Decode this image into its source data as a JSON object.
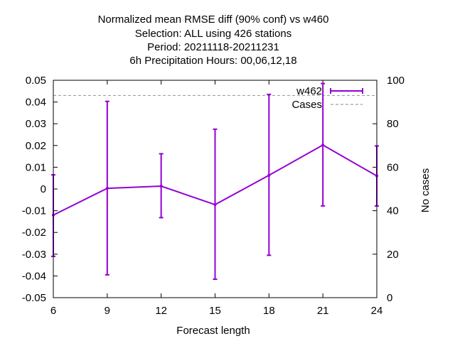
{
  "chart_data": {
    "type": "line",
    "title_lines": [
      "Normalized mean RMSE diff (90% conf) vs w460",
      "Selection: ALL using   426 stations",
      "Period: 20211118-20211231",
      "6h Precipitation    Hours:  00,06,12,18"
    ],
    "xlabel": "Forecast length",
    "ylabel": "",
    "y2label": "No cases",
    "x": [
      6,
      9,
      12,
      15,
      18,
      21,
      24
    ],
    "xlim": [
      6,
      24
    ],
    "ylim": [
      -0.05,
      0.05
    ],
    "y2lim": [
      0,
      100
    ],
    "x_ticks": [
      "6",
      "9",
      "12",
      "15",
      "18",
      "21",
      "24"
    ],
    "y_ticks": [
      "0.05",
      "0.04",
      "0.03",
      "0.02",
      "0.01",
      "0",
      "-0.01",
      "-0.02",
      "-0.03",
      "-0.04",
      "-0.05"
    ],
    "y2_ticks": [
      "100",
      "80",
      "60",
      "40",
      "20",
      "0"
    ],
    "legend_position": "top-right",
    "series": [
      {
        "name": "w462",
        "color": "#9400d3",
        "axis": "left",
        "values": [
          -0.012,
          0.0003,
          0.0013,
          -0.0072,
          0.0063,
          0.0202,
          0.006
        ],
        "err_low": [
          -0.031,
          -0.0395,
          -0.0132,
          -0.0415,
          -0.0305,
          -0.0078,
          -0.0078
        ],
        "err_high": [
          0.0065,
          0.0403,
          0.0162,
          0.0275,
          0.0435,
          0.0485,
          0.0198
        ]
      },
      {
        "name": "Cases",
        "color": "#a0a0a0",
        "axis": "right",
        "dashed": true,
        "values": [
          93,
          93,
          93,
          93,
          93,
          93,
          93
        ]
      }
    ]
  }
}
